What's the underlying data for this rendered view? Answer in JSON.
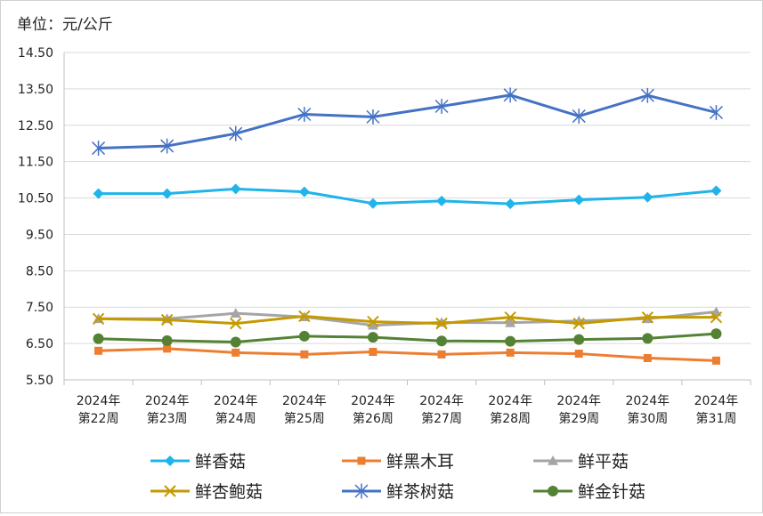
{
  "chart_data": {
    "type": "line",
    "unit_label": "单位：元/公斤",
    "y_ticks": [
      "14.50",
      "13.50",
      "12.50",
      "11.50",
      "10.50",
      "9.50",
      "8.50",
      "7.50",
      "6.50",
      "5.50"
    ],
    "ylim": [
      5.5,
      14.5
    ],
    "grid": "horizontal",
    "legend_position": "bottom",
    "categories": [
      [
        "2024年",
        "第22周"
      ],
      [
        "2024年",
        "第23周"
      ],
      [
        "2024年",
        "第24周"
      ],
      [
        "2024年",
        "第25周"
      ],
      [
        "2024年",
        "第26周"
      ],
      [
        "2024年",
        "第27周"
      ],
      [
        "2024年",
        "第28周"
      ],
      [
        "2024年",
        "第29周"
      ],
      [
        "2024年",
        "第30周"
      ],
      [
        "2024年",
        "第31周"
      ]
    ],
    "series": [
      {
        "name": "鲜香菇",
        "color": "#1fb4ea",
        "marker": "diamond",
        "values": [
          10.62,
          10.62,
          10.75,
          10.67,
          10.35,
          10.42,
          10.34,
          10.45,
          10.52,
          10.7
        ]
      },
      {
        "name": "鲜黑木耳",
        "color": "#ed7d31",
        "marker": "square",
        "values": [
          6.3,
          6.36,
          6.25,
          6.2,
          6.27,
          6.2,
          6.25,
          6.22,
          6.1,
          6.03
        ]
      },
      {
        "name": "鲜平菇",
        "color": "#a5a5a5",
        "marker": "triangle",
        "values": [
          7.18,
          7.18,
          7.33,
          7.23,
          7.0,
          7.08,
          7.07,
          7.12,
          7.18,
          7.37
        ]
      },
      {
        "name": "鲜杏鲍菇",
        "color": "#c49a00",
        "marker": "x",
        "values": [
          7.18,
          7.15,
          7.05,
          7.25,
          7.1,
          7.05,
          7.22,
          7.05,
          7.22,
          7.22
        ]
      },
      {
        "name": "鲜茶树菇",
        "color": "#4472c4",
        "marker": "star",
        "values": [
          11.87,
          11.93,
          12.27,
          12.8,
          12.73,
          13.02,
          13.33,
          12.75,
          13.32,
          12.85
        ]
      },
      {
        "name": "鲜金针菇",
        "color": "#548235",
        "marker": "circle",
        "values": [
          6.63,
          6.58,
          6.54,
          6.7,
          6.67,
          6.57,
          6.56,
          6.61,
          6.64,
          6.77
        ]
      }
    ]
  }
}
